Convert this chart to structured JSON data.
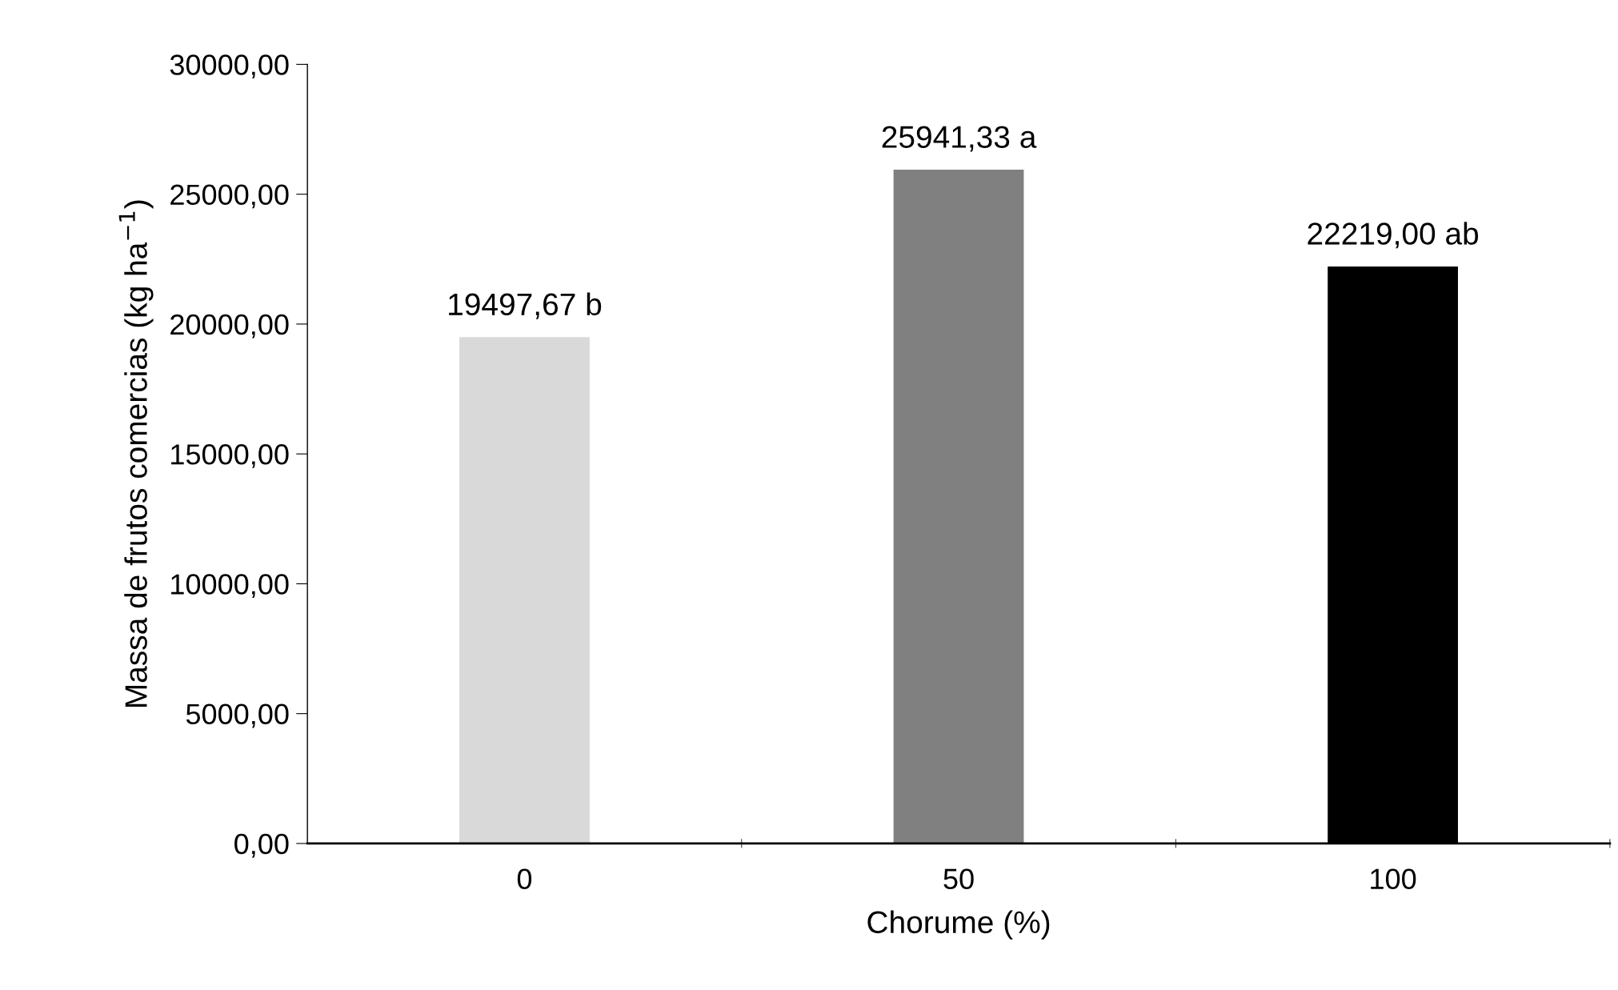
{
  "chart_data": {
    "type": "bar",
    "xlabel": "Chorume (%)",
    "ylabel": "Massa de frutos comercias (kg ha$^{−1}$)",
    "categories": [
      "0",
      "50",
      "100"
    ],
    "values": [
      19497.67,
      25941.33,
      22219.0
    ],
    "colors": [
      "#d9d9d9",
      "#808080",
      "#000000"
    ],
    "value_labels": [
      "19497,67 b",
      "25941,33 a",
      "22219,00 ab"
    ],
    "ylim": [
      0,
      30000
    ],
    "yticks": [
      {
        "value": 0,
        "label": "0,00"
      },
      {
        "value": 5000,
        "label": "5000,00"
      },
      {
        "value": 10000,
        "label": "10000,00"
      },
      {
        "value": 15000,
        "label": "15000,00"
      },
      {
        "value": 20000,
        "label": "20000,00"
      },
      {
        "value": 25000,
        "label": "25000,00"
      },
      {
        "value": 30000,
        "label": "30000,00"
      }
    ],
    "grid": false,
    "legend": false
  }
}
